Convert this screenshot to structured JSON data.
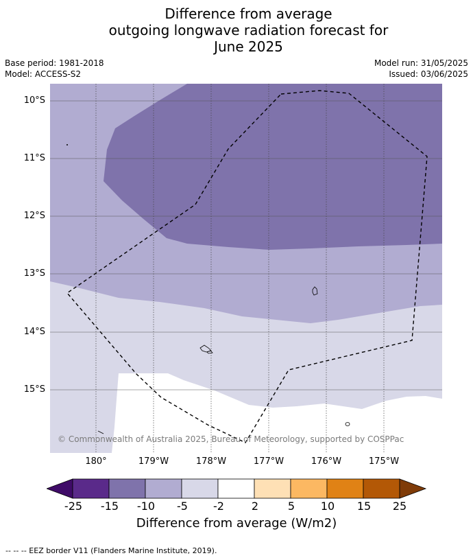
{
  "title": {
    "line1": "Difference from average",
    "line2": "outgoing longwave radiation forecast for",
    "line3": "June 2025"
  },
  "meta": {
    "base_period": "Base period: 1981-2018",
    "model": "Model: ACCESS-S2",
    "model_run": "Model run: 31/05/2025",
    "issued": "Issued: 03/06/2025"
  },
  "map": {
    "lat_labels": [
      "10°S",
      "11°S",
      "12°S",
      "13°S",
      "14°S",
      "15°S"
    ],
    "lon_labels": [
      "180°",
      "179°W",
      "178°W",
      "177°W",
      "176°W",
      "175°W"
    ],
    "copyright": "© Commonwealth of Australia 2025, Bureau of Meteorology, supported by COSPPac",
    "zones": [
      {
        "range": "-15 to -10",
        "color": "#7f73ab"
      },
      {
        "range": "-10 to -5",
        "color": "#b1acd1"
      },
      {
        "range": "-5 to -2",
        "color": "#d8d8e8"
      },
      {
        "range": "-2 to 2",
        "color": "#ffffff"
      }
    ]
  },
  "colorbar": {
    "labels": [
      "-25",
      "-15",
      "-10",
      "-5",
      "-2",
      "2",
      "5",
      "10",
      "15",
      "25"
    ],
    "colors": [
      "#3f0b68",
      "#5a2a8a",
      "#7f73ab",
      "#b1acd1",
      "#d8d8e8",
      "#ffffff",
      "#fee0b5",
      "#fcb862",
      "#e08215",
      "#b35806",
      "#7f3b08"
    ],
    "title": "Difference from average (W/m2)"
  },
  "legend": {
    "eez": "--  --  -- EEZ border V11 (Flanders Marine Institute, 2019)."
  }
}
